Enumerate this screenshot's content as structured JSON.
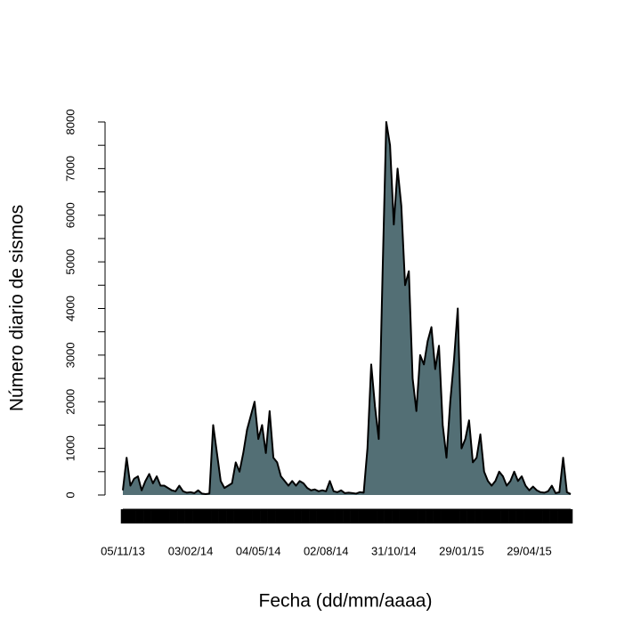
{
  "chart_data": {
    "type": "area",
    "xlabel": "Fecha (dd/mm/aaaa)",
    "ylabel": "Número diario de sismos",
    "categories": [
      "05/11/13",
      null,
      null,
      null,
      null,
      null,
      null,
      null,
      null,
      null,
      null,
      null,
      null,
      null,
      null,
      null,
      null,
      null,
      "03/02/14",
      null,
      null,
      null,
      null,
      null,
      null,
      null,
      null,
      null,
      null,
      null,
      null,
      null,
      null,
      null,
      null,
      null,
      "04/05/14",
      null,
      null,
      null,
      null,
      null,
      null,
      null,
      null,
      null,
      null,
      null,
      null,
      null,
      null,
      null,
      null,
      null,
      "02/08/14",
      null,
      null,
      null,
      null,
      null,
      null,
      null,
      null,
      null,
      null,
      null,
      null,
      null,
      null,
      null,
      null,
      null,
      "31/10/14",
      null,
      null,
      null,
      null,
      null,
      null,
      null,
      null,
      null,
      null,
      null,
      null,
      null,
      null,
      null,
      null,
      null,
      "29/01/15",
      null,
      null,
      null,
      null,
      null,
      null,
      null,
      null,
      null,
      null,
      null,
      null,
      null,
      null,
      null,
      null,
      null,
      "29/04/15",
      null,
      null,
      null,
      null,
      null,
      null,
      null,
      null,
      null,
      null,
      null
    ],
    "values": [
      100,
      800,
      200,
      350,
      400,
      100,
      300,
      450,
      250,
      400,
      200,
      200,
      150,
      100,
      80,
      200,
      80,
      50,
      60,
      40,
      100,
      30,
      20,
      30,
      1500,
      900,
      300,
      150,
      200,
      250,
      700,
      500,
      900,
      1400,
      1700,
      2000,
      1200,
      1500,
      900,
      1800,
      800,
      700,
      400,
      300,
      200,
      300,
      200,
      300,
      250,
      150,
      100,
      120,
      80,
      100,
      80,
      300,
      80,
      60,
      100,
      40,
      50,
      40,
      30,
      60,
      50,
      1000,
      2800,
      1900,
      1200,
      4700,
      8000,
      7500,
      5800,
      7000,
      6200,
      4500,
      4800,
      2500,
      1800,
      3000,
      2800,
      3300,
      3600,
      2700,
      3200,
      1500,
      800,
      2000,
      2900,
      4000,
      1000,
      1200,
      1600,
      700,
      800,
      1300,
      500,
      300,
      200,
      300,
      500,
      400,
      200,
      300,
      500,
      300,
      400,
      200,
      100,
      180,
      100,
      60,
      50,
      80,
      200,
      40,
      60,
      800,
      60,
      20
    ],
    "color": "#536f75",
    "ylim": [
      0,
      8000
    ],
    "yticks": [
      0,
      1000,
      2000,
      3000,
      4000,
      5000,
      6000,
      7000,
      8000
    ],
    "yminorticks": [
      500,
      1500,
      2500,
      3500,
      4500,
      5500,
      6500,
      7500
    ]
  }
}
